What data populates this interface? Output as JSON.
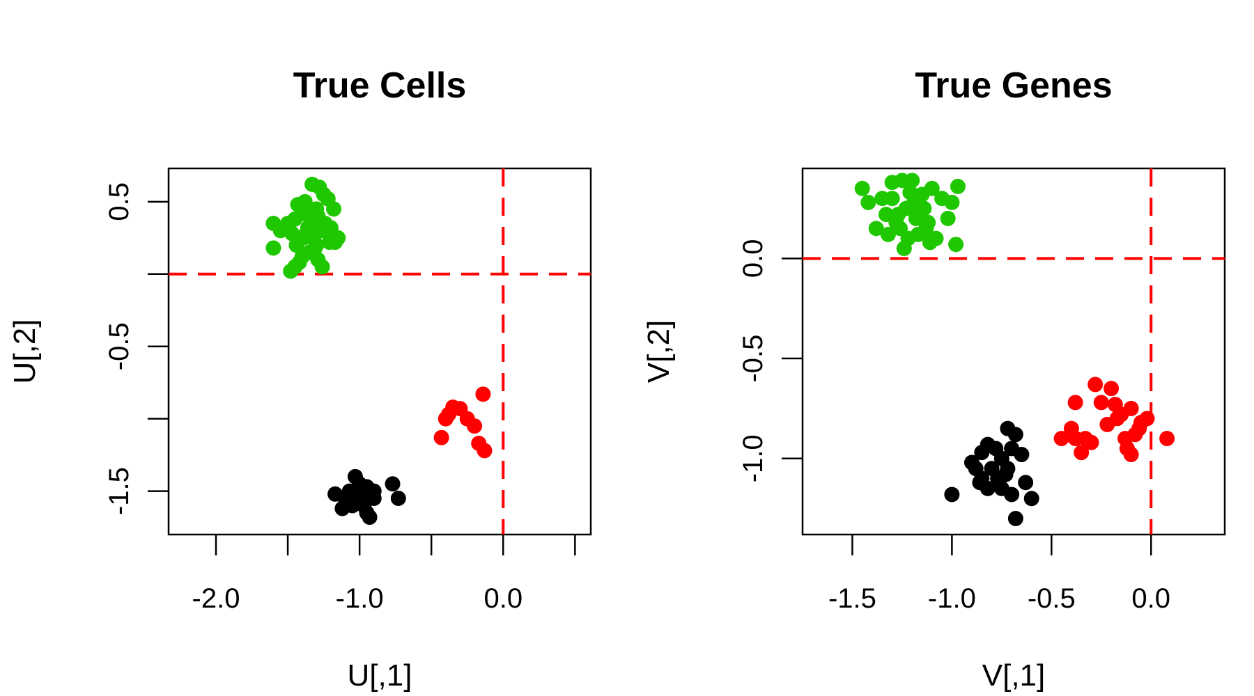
{
  "chart_data": [
    {
      "type": "scatter",
      "title": "True Cells",
      "xlabel": "U[,1]",
      "ylabel": "U[,2]",
      "xlim": [
        -2.33,
        0.61
      ],
      "ylim": [
        -1.8,
        0.73
      ],
      "xticks": [
        -2.0,
        -1.5,
        -1.0,
        -0.5,
        0.0,
        0.5
      ],
      "xtick_labels": [
        "-2.0",
        "",
        "-1.0",
        "",
        "0.0",
        ""
      ],
      "yticks": [
        0.5,
        0.0,
        -0.5,
        -1.0,
        -1.5
      ],
      "ytick_labels": [
        "0.5",
        "",
        "-0.5",
        "",
        "-1.5"
      ],
      "reference_lines": {
        "x": 0.0,
        "y": 0.0,
        "color": "#ff0000",
        "style": "dashed"
      },
      "grid": false,
      "series": [
        {
          "color": "#1ec700",
          "x": [
            -1.33,
            -1.28,
            -1.25,
            -1.38,
            -1.43,
            -1.3,
            -1.4,
            -1.35,
            -1.45,
            -1.5,
            -1.6,
            -1.55,
            -1.6,
            -1.22,
            -1.18,
            -1.2,
            -1.15,
            -1.3,
            -1.35,
            -1.4,
            -1.42,
            -1.45,
            -1.48,
            -1.37,
            -1.32,
            -1.27,
            -1.24,
            -1.21,
            -1.17,
            -1.36,
            -1.34,
            -1.31,
            -1.29,
            -1.26,
            -1.39,
            -1.44,
            -1.33,
            -1.47,
            -1.29
          ],
          "y": [
            0.62,
            0.6,
            0.55,
            0.5,
            0.48,
            0.45,
            0.42,
            0.4,
            0.38,
            0.35,
            0.35,
            0.3,
            0.18,
            0.52,
            0.45,
            0.32,
            0.25,
            0.2,
            0.15,
            0.12,
            0.08,
            0.05,
            0.02,
            0.28,
            0.25,
            0.3,
            0.35,
            0.22,
            0.22,
            0.32,
            0.38,
            0.18,
            0.1,
            0.05,
            0.25,
            0.2,
            0.3,
            0.28,
            0.4
          ]
        },
        {
          "color": "#ff0000",
          "x": [
            -0.14,
            -0.35,
            -0.3,
            -0.4,
            -0.25,
            -0.2,
            -0.17,
            -0.13,
            -0.43,
            -0.38
          ],
          "y": [
            -0.83,
            -0.92,
            -0.93,
            -1.0,
            -1.0,
            -1.05,
            -1.17,
            -1.22,
            -1.13,
            -0.97
          ],
          "name": ""
        },
        {
          "color": "#000000",
          "x": [
            -1.03,
            -1.0,
            -1.17,
            -1.1,
            -0.95,
            -0.9,
            -0.77,
            -1.07,
            -1.0,
            -0.9,
            -0.97,
            -0.93,
            -1.05,
            -1.12,
            -0.73,
            -0.95,
            -0.98
          ],
          "y": [
            -1.4,
            -1.45,
            -1.52,
            -1.55,
            -1.47,
            -1.5,
            -1.45,
            -1.5,
            -1.55,
            -1.55,
            -1.6,
            -1.68,
            -1.6,
            -1.62,
            -1.55,
            -1.65,
            -1.52
          ]
        }
      ]
    },
    {
      "type": "scatter",
      "title": "True Genes",
      "xlabel": "V[,1]",
      "ylabel": "V[,2]",
      "xlim": [
        -1.75,
        0.37
      ],
      "ylim": [
        -1.38,
        0.45
      ],
      "xticks": [
        -1.5,
        -1.0,
        -0.5,
        0.0
      ],
      "xtick_labels": [
        "-1.5",
        "-1.0",
        "-0.5",
        "0.0"
      ],
      "yticks": [
        0.0,
        -0.5,
        -1.0
      ],
      "ytick_labels": [
        "0.0",
        "-0.5",
        "-1.0"
      ],
      "reference_lines": {
        "x": 0.0,
        "y": 0.0,
        "color": "#ff0000",
        "style": "dashed"
      },
      "grid": false,
      "series": [
        {
          "color": "#1ec700",
          "x": [
            -1.45,
            -1.42,
            -1.35,
            -1.3,
            -1.25,
            -1.2,
            -1.15,
            -1.1,
            -1.05,
            -1.0,
            -0.97,
            -1.33,
            -1.28,
            -1.23,
            -1.18,
            -1.13,
            -1.08,
            -1.38,
            -1.22,
            -1.17,
            -1.12,
            -1.27,
            -1.32,
            -1.19,
            -1.14,
            -1.24,
            -0.98,
            -1.02,
            -1.3,
            -1.21,
            -1.16,
            -1.26,
            -1.11
          ],
          "y": [
            0.35,
            0.28,
            0.3,
            0.38,
            0.39,
            0.39,
            0.32,
            0.35,
            0.3,
            0.28,
            0.36,
            0.22,
            0.18,
            0.25,
            0.2,
            0.15,
            0.1,
            0.15,
            0.1,
            0.12,
            0.18,
            0.22,
            0.12,
            0.28,
            0.25,
            0.05,
            0.07,
            0.2,
            0.3,
            0.33,
            0.22,
            0.15,
            0.08
          ]
        },
        {
          "color": "#ff0000",
          "x": [
            -0.28,
            -0.2,
            -0.38,
            -0.25,
            -0.18,
            -0.15,
            -0.1,
            -0.05,
            -0.02,
            0.08,
            -0.45,
            -0.4,
            -0.33,
            -0.35,
            -0.3,
            -0.22,
            -0.13,
            -0.08,
            -0.12,
            -0.17,
            -0.1,
            -0.06,
            -0.38
          ],
          "y": [
            -0.63,
            -0.65,
            -0.72,
            -0.72,
            -0.73,
            -0.78,
            -0.75,
            -0.82,
            -0.8,
            -0.9,
            -0.9,
            -0.85,
            -0.9,
            -0.97,
            -0.92,
            -0.83,
            -0.9,
            -0.88,
            -0.95,
            -0.8,
            -0.98,
            -0.85,
            -0.9
          ]
        },
        {
          "color": "#000000",
          "x": [
            -0.72,
            -0.68,
            -0.82,
            -0.78,
            -0.85,
            -0.75,
            -0.7,
            -0.65,
            -0.88,
            -0.8,
            -0.77,
            -0.73,
            -0.82,
            -0.86,
            -0.63,
            -0.6,
            -0.7,
            -0.75,
            -1.0,
            -0.9,
            -0.85,
            -0.72,
            -0.68
          ],
          "y": [
            -0.85,
            -0.88,
            -0.93,
            -0.95,
            -0.97,
            -1.0,
            -0.95,
            -0.98,
            -1.05,
            -1.05,
            -1.1,
            -1.08,
            -1.15,
            -1.12,
            -1.12,
            -1.2,
            -1.18,
            -1.15,
            -1.18,
            -1.02,
            -1.1,
            -1.05,
            -1.3
          ]
        }
      ]
    }
  ]
}
